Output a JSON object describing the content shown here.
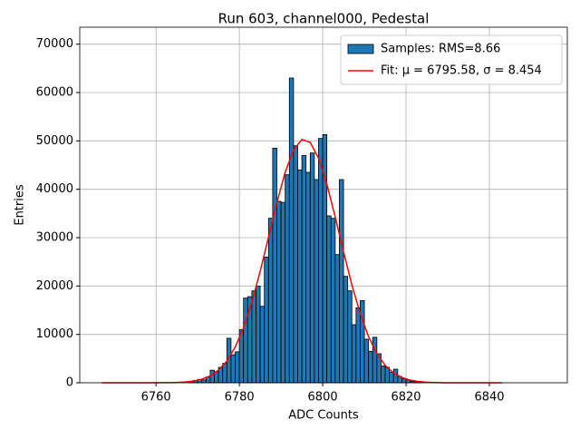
{
  "chart_data": {
    "type": "histogram",
    "title": "Run 603, channel000, Pedestal",
    "x_label": "ADC Counts",
    "y_label": "Entries",
    "xlim": [
      6741.7,
      6858.7
    ],
    "xticks": [
      6760,
      6780,
      6800,
      6820,
      6840
    ],
    "ylim": [
      0,
      73500
    ],
    "yticks": [
      0,
      10000,
      20000,
      30000,
      40000,
      50000,
      60000,
      70000
    ],
    "grid": true,
    "legend": "upper right",
    "series": [
      {
        "type": "histogram",
        "name": "Samples: RMS=8.66",
        "color": "#1f77b4",
        "bins": [
          6768,
          6769,
          6770,
          6771,
          6772,
          6773,
          6774,
          6775,
          6776,
          6777,
          6778,
          6779,
          6780,
          6781,
          6782,
          6783,
          6784,
          6785,
          6786,
          6787,
          6788,
          6789,
          6790,
          6791,
          6792,
          6793,
          6794,
          6795,
          6796,
          6797,
          6798,
          6799,
          6800,
          6801,
          6802,
          6803,
          6804,
          6805,
          6806,
          6807,
          6808,
          6809,
          6810,
          6811,
          6812,
          6813,
          6814,
          6815,
          6816,
          6817,
          6818,
          6819,
          6820,
          6821,
          6822,
          6823,
          6824
        ],
        "values": [
          300,
          500,
          700,
          600,
          1200,
          2600,
          2300,
          3200,
          4000,
          9200,
          5800,
          6400,
          11000,
          17500,
          17800,
          19000,
          20000,
          15800,
          26000,
          34000,
          48500,
          37500,
          37300,
          43000,
          63000,
          49000,
          44000,
          47000,
          43500,
          47500,
          42000,
          50500,
          51300,
          34500,
          34000,
          26500,
          42000,
          22000,
          19000,
          12000,
          15500,
          17000,
          9000,
          6500,
          9400,
          6000,
          3500,
          3200,
          2200,
          2800,
          1300,
          800,
          600,
          300,
          200,
          100
        ]
      },
      {
        "type": "line",
        "name": "Fit: μ = 6795.58, σ = 8.454",
        "color": "#ff0000",
        "x": [
          6747,
          6749,
          6751,
          6753,
          6755,
          6757,
          6759,
          6761,
          6763,
          6765,
          6767,
          6769,
          6771,
          6773,
          6775,
          6777,
          6779,
          6781,
          6783,
          6785,
          6787,
          6789,
          6791,
          6793,
          6795,
          6797,
          6799,
          6801,
          6803,
          6805,
          6807,
          6809,
          6811,
          6813,
          6815,
          6817,
          6819,
          6821,
          6823,
          6825,
          6827,
          6829,
          6831,
          6833,
          6835,
          6837,
          6839,
          6841,
          6843
        ],
        "values": [
          0,
          0,
          0,
          0,
          0,
          0,
          0,
          12,
          30,
          73,
          166,
          360,
          736,
          1423,
          2604,
          4503,
          7368,
          11390,
          16657,
          23038,
          30119,
          37225,
          43520,
          48107,
          50284,
          49694,
          46439,
          41036,
          34287,
          27090,
          20241,
          14298,
          9546,
          6033,
          3604,
          2036,
          1086,
          548,
          262,
          118,
          50,
          0,
          0,
          0,
          0,
          0,
          0,
          0,
          0
        ]
      }
    ]
  }
}
